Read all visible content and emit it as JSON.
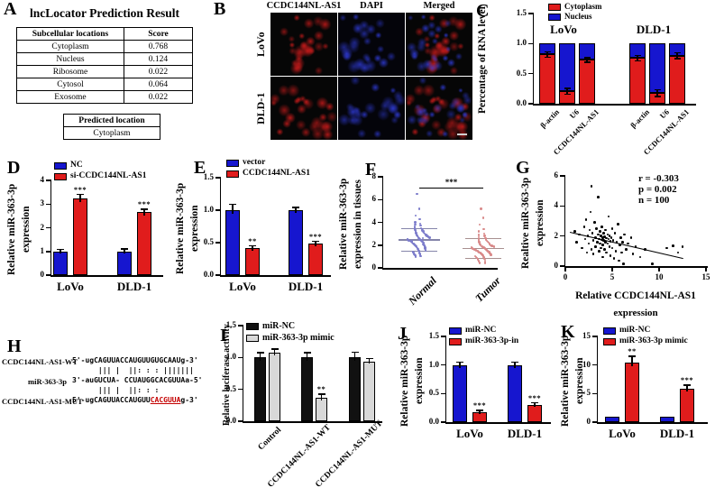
{
  "panels": {
    "A": {
      "label": "A",
      "title": "lncLocator Prediction Result",
      "table": {
        "headers": [
          "Subcellular locations",
          "Score"
        ],
        "rows": [
          [
            "Cytoplasm",
            "0.768"
          ],
          [
            "Nucleus",
            "0.124"
          ],
          [
            "Ribosome",
            "0.022"
          ],
          [
            "Cytosol",
            "0.064"
          ],
          [
            "Exosome",
            "0.022"
          ]
        ]
      },
      "predicted": {
        "header": "Predicted location",
        "value": "Cytoplasm"
      }
    },
    "B": {
      "label": "B",
      "col_headers": [
        "CCDC144NL-AS1",
        "DAPI",
        "Merged"
      ],
      "row_labels": [
        "LoVo",
        "DLD-1"
      ],
      "colors": {
        "red_rgb": "214,28,28",
        "blue_rgb": "48,60,220"
      }
    },
    "C": {
      "label": "C"
    },
    "D": {
      "label": "D"
    },
    "E": {
      "label": "E"
    },
    "F": {
      "label": "F"
    },
    "G": {
      "label": "G"
    },
    "H": {
      "label": "H",
      "rows": {
        "wt_label": "CCDC144NL-AS1-WT",
        "wt_seq": "5'-ugCAGUUACCAUGUUGUGCAAUg-3'",
        "pipes1": "      ||| |  ||: : : |||||||",
        "mir_label": "miR-363-3p",
        "mir_seq": "3'-auGUCUA- CCUAUGGCACGUUAa-5'",
        "pipes2": "      ||| |  ||: : :",
        "mut_label": "CCDC144NL-AS1-MUT",
        "mut_prefix": "5'-ugCAGUUACCAUGUU",
        "mut_red": "CACGUUA",
        "mut_suffix": "g-3'"
      }
    },
    "I": {
      "label": "I"
    },
    "J": {
      "label": "J"
    },
    "K": {
      "label": "K"
    }
  },
  "chart_data": {
    "C": {
      "type": "bar",
      "stacked": true,
      "ylabel": "Percentage of RNA level",
      "ylim": [
        0,
        1.5
      ],
      "yticks": [
        "0.0",
        "0.5",
        "1.0",
        "1.5"
      ],
      "group_titles": [
        "LoVo",
        "DLD-1"
      ],
      "categories": [
        "β-actin",
        "U6",
        "CCDC144NL-AS1",
        "β-actin",
        "U6",
        "CCDC144NL-AS1"
      ],
      "series": [
        {
          "name": "Cytoplasm",
          "color": "#e01c1c",
          "values": [
            0.82,
            0.21,
            0.73,
            0.76,
            0.18,
            0.8
          ]
        },
        {
          "name": "Nucleus",
          "color": "#1616cf",
          "values": [
            0.18,
            0.79,
            0.27,
            0.24,
            0.82,
            0.2
          ]
        }
      ],
      "interface_err": [
        0.04,
        0.04,
        0.03,
        0.04,
        0.05,
        0.04
      ]
    },
    "D": {
      "type": "bar",
      "ylabel_lines": [
        "Relative miR-363-3p",
        "expression"
      ],
      "ylim": [
        0,
        4
      ],
      "yticks": [
        "0",
        "1",
        "2",
        "3",
        "4"
      ],
      "categories": [
        "LoVo",
        "DLD-1"
      ],
      "series": [
        {
          "name": "NC",
          "color": "#1616cf",
          "values": [
            1.0,
            1.0
          ],
          "errs": [
            0.08,
            0.09
          ]
        },
        {
          "name": "si-CCDC144NL-AS1",
          "color": "#e01c1c",
          "values": [
            3.25,
            2.65
          ],
          "errs": [
            0.15,
            0.12
          ],
          "sigs": [
            "***",
            "***"
          ]
        }
      ]
    },
    "E": {
      "type": "bar",
      "ylabel_lines": [
        "Relative miR-363-3p",
        "expression"
      ],
      "ylim": [
        0,
        1.5
      ],
      "yticks": [
        "0.0",
        "0.5",
        "1.0",
        "1.5"
      ],
      "categories": [
        "LoVo",
        "DLD-1"
      ],
      "series": [
        {
          "name": "vector",
          "color": "#1616cf",
          "values": [
            1.0,
            1.0
          ],
          "errs": [
            0.09,
            0.04
          ]
        },
        {
          "name": "CCDC144NL-AS1",
          "color": "#e01c1c",
          "values": [
            0.41,
            0.48
          ],
          "errs": [
            0.04,
            0.04
          ],
          "sigs": [
            "**",
            "***"
          ]
        }
      ]
    },
    "F": {
      "type": "scatter",
      "ylabel_lines": [
        "Relative miR-363-3p",
        "expression in tissues"
      ],
      "ylim": [
        0,
        8
      ],
      "yticks": [
        "0",
        "2",
        "4",
        "6",
        "8"
      ],
      "sig": "***",
      "sig_y": 7.05,
      "groups": [
        {
          "label": "Normal",
          "color": "#7d7dcb",
          "line_color": "#8585aa",
          "mean": 2.45,
          "sd_low": 1.45,
          "sd_high": 3.45,
          "points": [
            6.5,
            5.2,
            4.6,
            4.3,
            4.0,
            3.9,
            3.8,
            3.7,
            3.6,
            3.5,
            3.45,
            3.4,
            3.35,
            3.3,
            3.25,
            3.2,
            3.15,
            3.1,
            3.05,
            3.0,
            2.95,
            2.9,
            2.85,
            2.8,
            2.75,
            2.72,
            2.7,
            2.65,
            2.6,
            2.55,
            2.5,
            2.48,
            2.45,
            2.42,
            2.4,
            2.38,
            2.35,
            2.3,
            2.28,
            2.25,
            2.2,
            2.15,
            2.1,
            2.05,
            2.0,
            1.98,
            1.95,
            1.9,
            1.85,
            1.8,
            1.78,
            1.75,
            1.7,
            1.65,
            1.6,
            1.55,
            1.5,
            1.45,
            1.4,
            1.35,
            1.3,
            1.25,
            1.2,
            1.15,
            1.1,
            1.05,
            1.0,
            2.62,
            2.33,
            2.08
          ]
        },
        {
          "label": "Tumor",
          "color": "#d98a8a",
          "line_color": "#a89090",
          "mean": 1.72,
          "sd_low": 0.85,
          "sd_high": 2.6,
          "points": [
            5.2,
            4.4,
            3.8,
            3.4,
            3.2,
            3.0,
            2.9,
            2.8,
            2.7,
            2.6,
            2.55,
            2.5,
            2.45,
            2.4,
            2.35,
            2.3,
            2.25,
            2.2,
            2.15,
            2.1,
            2.05,
            2.0,
            1.98,
            1.95,
            1.92,
            1.9,
            1.88,
            1.85,
            1.82,
            1.8,
            1.78,
            1.75,
            1.72,
            1.7,
            1.68,
            1.65,
            1.62,
            1.6,
            1.58,
            1.55,
            1.52,
            1.5,
            1.48,
            1.45,
            1.42,
            1.4,
            1.38,
            1.35,
            1.32,
            1.3,
            1.28,
            1.25,
            1.22,
            1.2,
            1.18,
            1.15,
            1.12,
            1.1,
            1.05,
            1.0,
            0.95,
            0.9,
            0.85,
            0.8,
            0.75,
            0.7,
            0.6,
            0.5,
            0.45,
            0.4
          ]
        }
      ]
    },
    "G": {
      "type": "scatter",
      "ylabel_lines": [
        "Realtive miR-363-3p",
        "expression"
      ],
      "xlabel_lines": [
        "Relative CCDC144NL-AS1",
        "expression"
      ],
      "ylim": [
        0,
        6
      ],
      "xlim": [
        0,
        15
      ],
      "yticks": [
        "0",
        "2",
        "4",
        "6"
      ],
      "xticks": [
        "0",
        "5",
        "10",
        "15"
      ],
      "stats": [
        "r = -0.303",
        "p = 0.002",
        "n = 100"
      ],
      "trend": {
        "x1": 0.5,
        "y1": 2.3,
        "x2": 12.6,
        "y2": 0.55
      },
      "points": [
        [
          1.0,
          2.3
        ],
        [
          1.2,
          1.6
        ],
        [
          1.5,
          2.1
        ],
        [
          1.8,
          1.2
        ],
        [
          2.0,
          2.6
        ],
        [
          2.1,
          1.8
        ],
        [
          2.2,
          3.1
        ],
        [
          2.3,
          0.9
        ],
        [
          2.4,
          2.0
        ],
        [
          2.5,
          1.5
        ],
        [
          2.6,
          2.4
        ],
        [
          2.7,
          3.6
        ],
        [
          2.8,
          5.3
        ],
        [
          2.8,
          1.1
        ],
        [
          2.9,
          2.2
        ],
        [
          3.0,
          1.7
        ],
        [
          3.0,
          0.8
        ],
        [
          3.1,
          2.9
        ],
        [
          3.2,
          1.9
        ],
        [
          3.2,
          1.3
        ],
        [
          3.3,
          2.5
        ],
        [
          3.4,
          1.6
        ],
        [
          3.5,
          4.6
        ],
        [
          3.5,
          2.1
        ],
        [
          3.6,
          1.8
        ],
        [
          3.6,
          1.0
        ],
        [
          3.7,
          2.3
        ],
        [
          3.7,
          1.5
        ],
        [
          3.8,
          2.0
        ],
        [
          3.8,
          1.2
        ],
        [
          3.9,
          1.75
        ],
        [
          3.9,
          2.6
        ],
        [
          4.0,
          1.9
        ],
        [
          4.0,
          1.4
        ],
        [
          4.0,
          0.6
        ],
        [
          4.1,
          2.2
        ],
        [
          4.1,
          1.7
        ],
        [
          4.2,
          1.95
        ],
        [
          4.2,
          1.1
        ],
        [
          4.3,
          2.4
        ],
        [
          4.3,
          1.6
        ],
        [
          4.4,
          1.85
        ],
        [
          4.4,
          0.9
        ],
        [
          4.5,
          2.1
        ],
        [
          4.5,
          1.5
        ],
        [
          4.6,
          1.8
        ],
        [
          4.6,
          3.3
        ],
        [
          4.7,
          1.3
        ],
        [
          4.7,
          2.0
        ],
        [
          4.8,
          1.65
        ],
        [
          4.8,
          0.7
        ],
        [
          4.9,
          1.9
        ],
        [
          5.0,
          2.5
        ],
        [
          5.0,
          1.2
        ],
        [
          5.1,
          1.7
        ],
        [
          5.2,
          0.5
        ],
        [
          5.3,
          2.2
        ],
        [
          5.4,
          1.0
        ],
        [
          5.5,
          1.6
        ],
        [
          5.6,
          2.8
        ],
        [
          5.7,
          0.35
        ],
        [
          5.8,
          1.4
        ],
        [
          5.9,
          1.9
        ],
        [
          6.0,
          0.9
        ],
        [
          6.1,
          1.6
        ],
        [
          6.2,
          0.15
        ],
        [
          6.3,
          2.1
        ],
        [
          6.5,
          1.1
        ],
        [
          6.7,
          1.5
        ],
        [
          7.0,
          1.9
        ],
        [
          7.2,
          0.8
        ],
        [
          7.5,
          1.3
        ],
        [
          8.0,
          0.6
        ],
        [
          8.5,
          1.1
        ],
        [
          9.3,
          0.15
        ],
        [
          10.8,
          1.2
        ],
        [
          11.5,
          1.35
        ],
        [
          12.0,
          0.9
        ],
        [
          12.5,
          1.3
        ]
      ]
    },
    "I": {
      "type": "bar",
      "ylabel_lines": [
        "Relative luciferase activity"
      ],
      "ylim": [
        0,
        1.5
      ],
      "yticks": [
        "0.0",
        "0.5",
        "1.0",
        "1.5"
      ],
      "categories": [
        "Control",
        "CCDC144NL-AS1-WT",
        "CCDC144NL-AS1-MUT"
      ],
      "series": [
        {
          "name": "miR-NC",
          "color": "#111111",
          "values": [
            1.0,
            1.0,
            1.0
          ],
          "errs": [
            0.07,
            0.07,
            0.08
          ]
        },
        {
          "name": "miR-363-3p mimic",
          "color": "#d8d8d8",
          "values": [
            1.08,
            0.37,
            0.94
          ],
          "errs": [
            0.05,
            0.05,
            0.04
          ],
          "sigs": [
            "",
            "**",
            ""
          ]
        }
      ]
    },
    "J": {
      "type": "bar",
      "ylabel_lines": [
        "Relative miR-363-3p",
        "expression"
      ],
      "ylim": [
        0,
        1.5
      ],
      "yticks": [
        "0.0",
        "0.5",
        "1.0",
        "1.5"
      ],
      "categories": [
        "LoVo",
        "DLD-1"
      ],
      "series": [
        {
          "name": "miR-NC",
          "color": "#1616cf",
          "values": [
            1.0,
            1.0
          ],
          "errs": [
            0.05,
            0.05
          ]
        },
        {
          "name": "miR-363-3p-in",
          "color": "#e01c1c",
          "values": [
            0.17,
            0.3
          ],
          "errs": [
            0.03,
            0.03
          ],
          "sigs": [
            "***",
            "***"
          ]
        }
      ]
    },
    "K": {
      "type": "bar",
      "ylabel_lines": [
        "Relative miR-363-3p",
        "expression"
      ],
      "ylim": [
        0,
        15
      ],
      "yticks": [
        "0",
        "5",
        "10",
        "15"
      ],
      "categories": [
        "LoVo",
        "DLD-1"
      ],
      "series": [
        {
          "name": "miR-NC",
          "color": "#1616cf",
          "values": [
            1.0,
            1.0
          ],
          "errs": [
            0,
            0
          ]
        },
        {
          "name": "miR-363-3p mimic",
          "color": "#e01c1c",
          "values": [
            10.4,
            5.9
          ],
          "errs": [
            1.1,
            0.5
          ],
          "sigs": [
            "**",
            "***"
          ]
        }
      ]
    }
  }
}
